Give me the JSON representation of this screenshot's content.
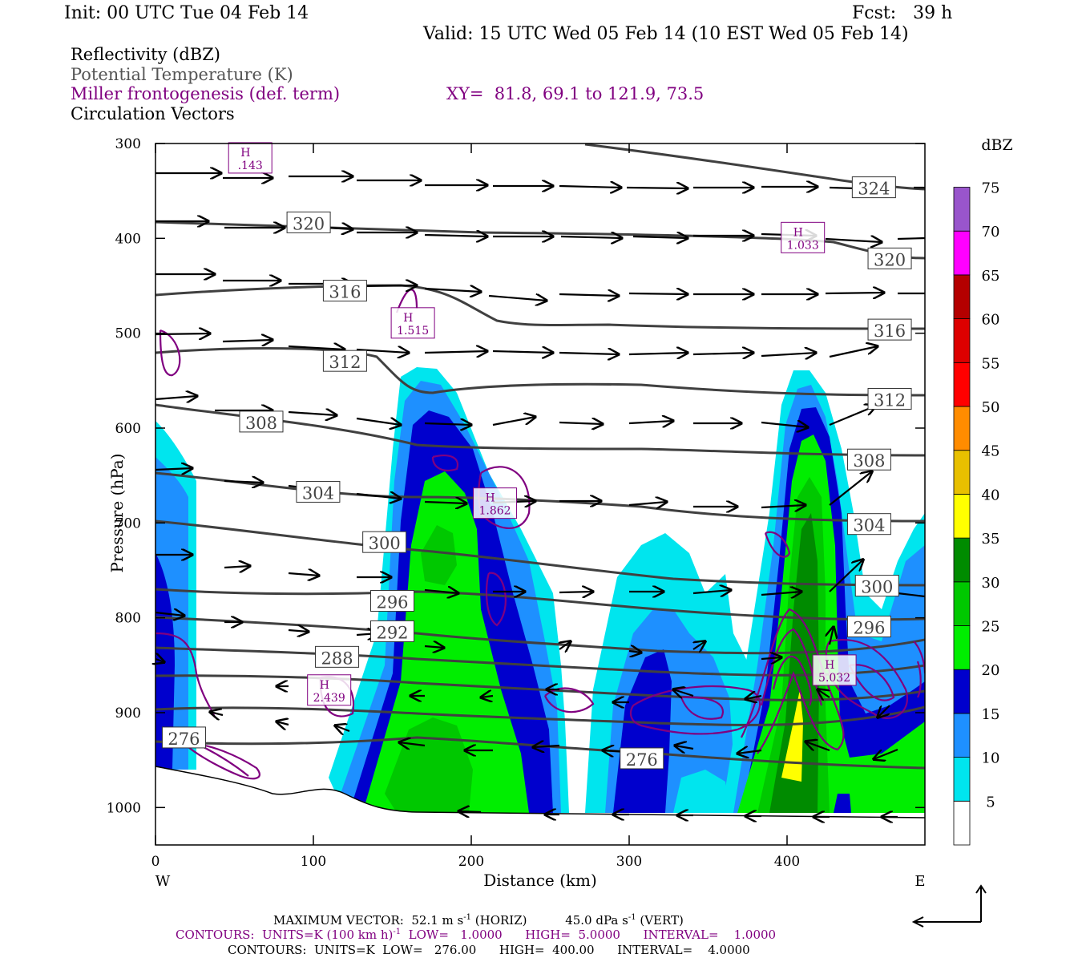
{
  "header": {
    "init": "Init: 00 UTC Tue 04 Feb 14",
    "fcst": "Fcst:   39 h",
    "valid": "Valid: 15 UTC Wed 05 Feb 14 (10 EST Wed 05 Feb 14)"
  },
  "legend": {
    "line1": "Reflectivity (dBZ)",
    "line2": "Potential Temperature (K)",
    "line3": "Miller frontogenesis (def. term)",
    "xy": "XY=  81.8, 69.1 to 121.9, 73.5",
    "line4": "Circulation Vectors"
  },
  "footer": {
    "max_vector_label": "MAXIMUM VECTOR:",
    "max_vector_horiz": "52.1 m s",
    "max_vector_horiz_exp": "-1",
    "max_vector_horiz_unit": "(HORIZ)",
    "max_vector_vert": "45.0 dPa s",
    "max_vector_vert_exp": "-1",
    "max_vector_vert_unit": "(VERT)",
    "contours_fronto_a": "CONTOURS:  UNITS=K (100 km h)",
    "contours_fronto_exp": "-1",
    "contours_fronto_b": "  LOW=   1.0000      HIGH=  5.0000      INTERVAL=    1.0000",
    "contours_theta": "CONTOURS:  UNITS=K  LOW=   276.00      HIGH=  400.00      INTERVAL=    4.0000"
  },
  "chart_data": {
    "type": "heatmap",
    "title": "Reflectivity (dBZ)",
    "xlabel": "Distance (km)",
    "ylabel": "Pressure (hPa)",
    "x_ticks": [
      "0",
      "100",
      "200",
      "300",
      "400"
    ],
    "y_ticks": [
      "300",
      "400",
      "500",
      "600",
      "700",
      "800",
      "900",
      "1000"
    ],
    "xlim": [
      0,
      485
    ],
    "ylim": [
      1040,
      300
    ],
    "x_end_labels": {
      "left": "W",
      "right": "E"
    },
    "colorbar": {
      "title": "dBZ",
      "levels": [
        5,
        10,
        15,
        20,
        25,
        30,
        35,
        40,
        45,
        50,
        55,
        60,
        65,
        70,
        75
      ],
      "colors": [
        "#ffffff",
        "#00e5ee",
        "#1e90ff",
        "#0000cd",
        "#00ee00",
        "#00c800",
        "#008b00",
        "#ffff00",
        "#e8c000",
        "#ff8c00",
        "#ff0000",
        "#dd0000",
        "#b40000",
        "#ff00ff",
        "#9955cc"
      ]
    },
    "reflectivity_cells": [
      {
        "name": "west edge",
        "x_range": [
          0,
          25
        ],
        "p_range": [
          600,
          960
        ],
        "max_dbz": 15
      },
      {
        "name": "central cell",
        "x_range": [
          150,
          260
        ],
        "p_range": [
          540,
          1010
        ],
        "max_dbz": 30
      },
      {
        "name": "east-central cell",
        "x_range": [
          275,
          365
        ],
        "p_range": [
          710,
          1010
        ],
        "max_dbz": 15
      },
      {
        "name": "eastern cell",
        "x_range": [
          370,
          485
        ],
        "p_range": [
          540,
          1010
        ],
        "max_dbz": 35
      }
    ],
    "theta_contour_labels": [
      "324",
      "320",
      "316",
      "312",
      "308",
      "304",
      "300",
      "296",
      "292",
      "288",
      "276"
    ],
    "theta_label_values": [
      {
        "value": 324,
        "x": 455,
        "p": 347
      },
      {
        "value": 320,
        "x": 97,
        "p": 384
      },
      {
        "value": 320,
        "x": 465,
        "p": 422
      },
      {
        "value": 316,
        "x": 120,
        "p": 456
      },
      {
        "value": 316,
        "x": 465,
        "p": 497
      },
      {
        "value": 312,
        "x": 120,
        "p": 530
      },
      {
        "value": 312,
        "x": 465,
        "p": 570
      },
      {
        "value": 308,
        "x": 67,
        "p": 594
      },
      {
        "value": 308,
        "x": 452,
        "p": 634
      },
      {
        "value": 304,
        "x": 103,
        "p": 668
      },
      {
        "value": 304,
        "x": 452,
        "p": 702
      },
      {
        "value": 300,
        "x": 145,
        "p": 721
      },
      {
        "value": 300,
        "x": 457,
        "p": 767
      },
      {
        "value": 296,
        "x": 150,
        "p": 783
      },
      {
        "value": 296,
        "x": 452,
        "p": 810
      },
      {
        "value": 292,
        "x": 150,
        "p": 815
      },
      {
        "value": 288,
        "x": 115,
        "p": 842
      },
      {
        "value": 276,
        "x": 18,
        "p": 927
      },
      {
        "value": 276,
        "x": 308,
        "p": 949
      }
    ],
    "frontogenesis_maxima": [
      {
        "label": "H",
        "value": ".143",
        "x": 60,
        "p": 316
      },
      {
        "label": "H",
        "value": "1.033",
        "x": 410,
        "p": 400
      },
      {
        "label": "H",
        "value": "1.515",
        "x": 163,
        "p": 490
      },
      {
        "label": "H",
        "value": "1.862",
        "x": 215,
        "p": 680
      },
      {
        "label": "H",
        "value": "2.439",
        "x": 110,
        "p": 877
      },
      {
        "label": "H",
        "value": "5.032",
        "x": 430,
        "p": 856
      }
    ]
  }
}
